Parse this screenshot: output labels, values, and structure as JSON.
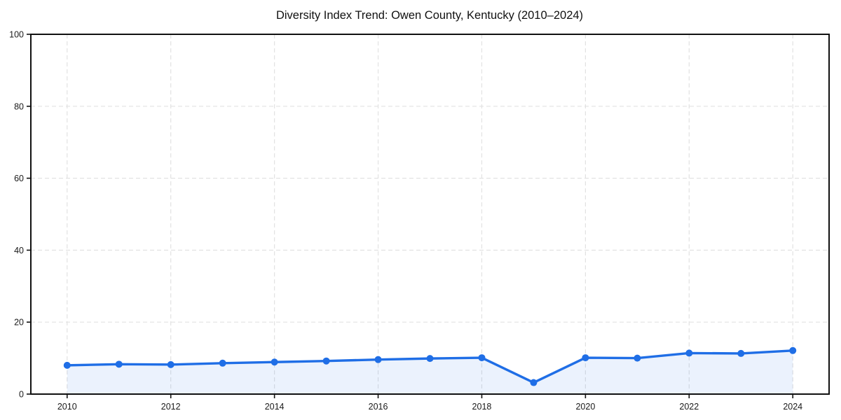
{
  "figure": {
    "background_color": "#ffffff"
  },
  "chart_data": {
    "type": "area",
    "title": "Diversity Index Trend: Owen County, Kentucky (2010–2024)",
    "xlabel": "",
    "ylabel": "",
    "x": [
      2010,
      2011,
      2012,
      2013,
      2014,
      2015,
      2016,
      2017,
      2018,
      2019,
      2020,
      2021,
      2022,
      2023,
      2024
    ],
    "series": [
      {
        "name": "Diversity Index",
        "values": [
          8.0,
          8.3,
          8.2,
          8.6,
          8.9,
          9.2,
          9.6,
          9.9,
          10.1,
          3.2,
          10.1,
          10.0,
          11.4,
          11.3,
          12.1
        ]
      }
    ],
    "xticks": [
      2010,
      2012,
      2014,
      2016,
      2018,
      2020,
      2022,
      2024
    ],
    "yticks": [
      0,
      20,
      40,
      60,
      80,
      100
    ],
    "xlim": [
      2009.3,
      2024.7
    ],
    "ylim": [
      0,
      100
    ],
    "grid": "dashed-both-axes",
    "legend": "none",
    "style": {
      "line_color": "#1f6ee6",
      "marker_color": "#1f6ee6",
      "fill_color": "rgba(31, 110, 230, 0.09)",
      "grid_color": "#e2e2e2",
      "axis_color": "#111111",
      "text_color": "#1a1a1a"
    }
  }
}
